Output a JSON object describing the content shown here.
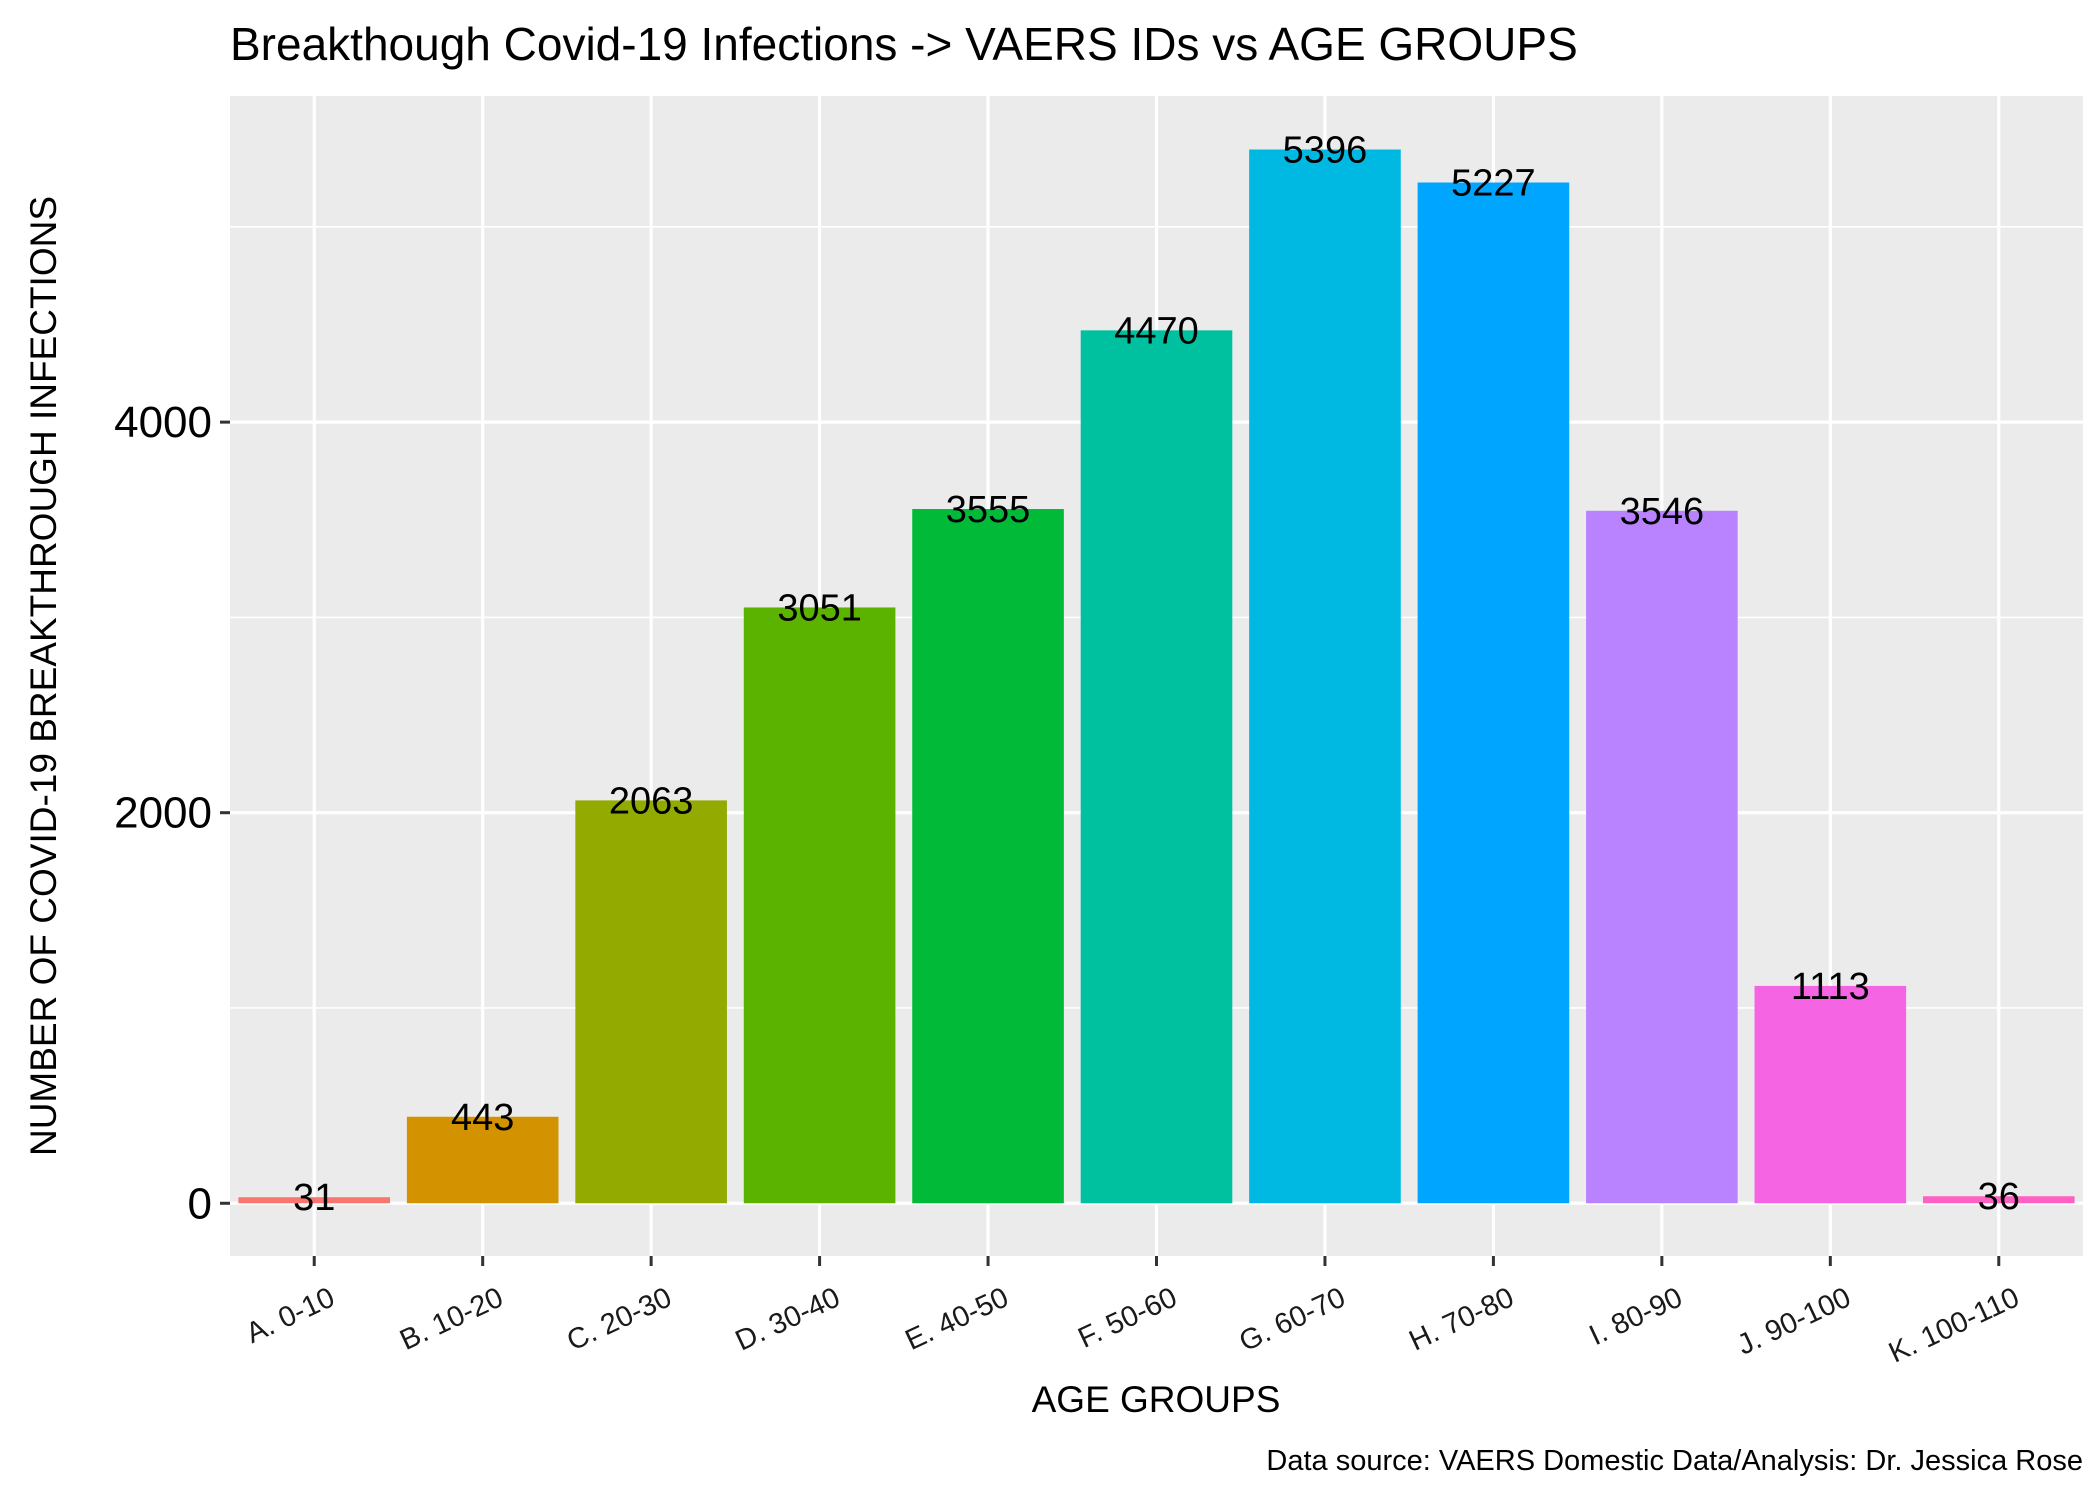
{
  "chart_data": {
    "type": "bar",
    "title": "Breakthough Covid-19 Infections -> VAERS IDs vs AGE GROUPS",
    "xlabel": "AGE GROUPS",
    "ylabel": "NUMBER OF COVID-19 BREAKTHROUGH INFECTIONS",
    "caption": "Data source: VAERS Domestic Data/Analysis: Dr. Jessica Rose",
    "categories": [
      "A. 0-10",
      "B. 10-20",
      "C. 20-30",
      "D. 30-40",
      "E. 40-50",
      "F. 50-60",
      "G. 60-70",
      "H. 70-80",
      "I. 80-90",
      "J. 90-100",
      "K. 100-110"
    ],
    "values": [
      31,
      443,
      2063,
      3051,
      3555,
      4470,
      5396,
      5227,
      3546,
      1113,
      36
    ],
    "colors": [
      "#F8766D",
      "#D39200",
      "#93AA00",
      "#5BB300",
      "#00BA38",
      "#00C19F",
      "#00B9E3",
      "#00A5FF",
      "#B983FF",
      "#F564E3",
      "#FF61C3"
    ],
    "ylim": [
      -270,
      5670
    ],
    "yticks": [
      0,
      2000,
      4000
    ],
    "yticks_minor": [
      1000,
      3000,
      5000
    ],
    "grid": true,
    "legend": "none",
    "panel_background": "#EBEBEB"
  }
}
